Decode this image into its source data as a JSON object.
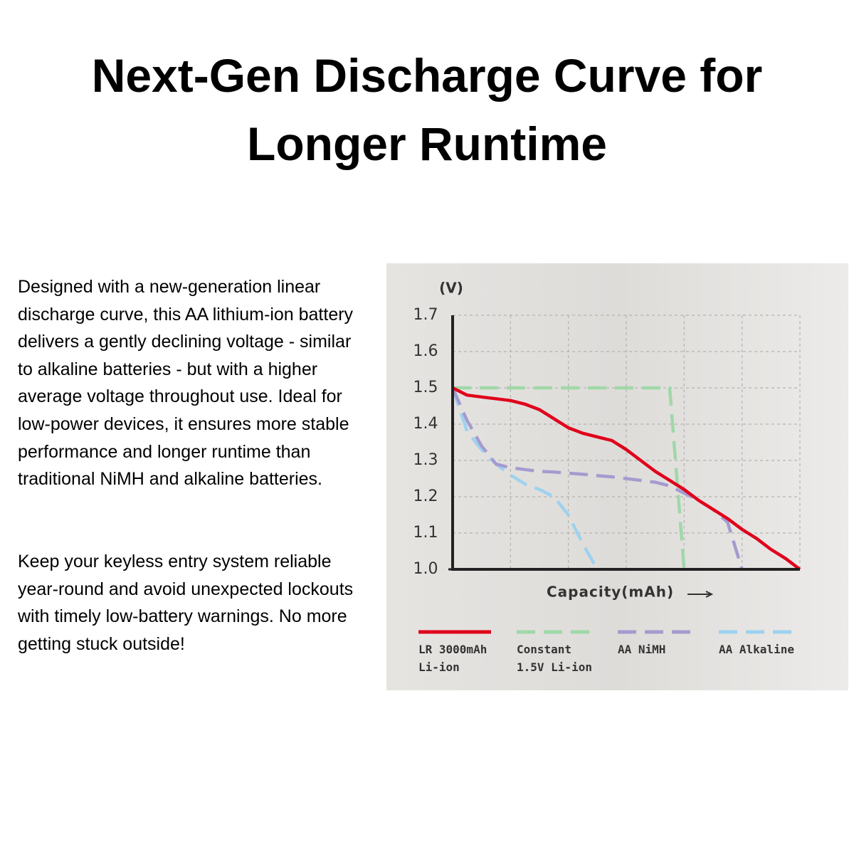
{
  "heading": "Next-Gen Discharge Curve for Longer Runtime",
  "paragraphs": [
    "Designed with a new-generation linear discharge curve, this AA lithium-ion battery delivers a gently declining voltage - similar to alkaline batteries - but with a higher average voltage throughout use. Ideal for low-power devices, it ensures more stable performance and longer runtime than traditional NiMH and alkaline batteries.",
    "Keep your keyless entry system reliable year-round and avoid unexpected lockouts with timely low-battery warnings. No more getting stuck outside!"
  ],
  "chart_data": {
    "type": "line",
    "ylabel": "(V)",
    "xlabel": "Capacity(mAh)",
    "categories": [
      null,
      null,
      null,
      null,
      null,
      null,
      null,
      null,
      null,
      null,
      null,
      null,
      null,
      null,
      null,
      null,
      null,
      null,
      null,
      null,
      null,
      null,
      null,
      null,
      null
    ],
    "ylim": [
      1,
      1.7
    ],
    "yticks": [
      {
        "value": 1,
        "label": "1.0"
      },
      1.1,
      1.2,
      1.3,
      1.4,
      1.5,
      1.6,
      1.7
    ],
    "grid": true,
    "series": [
      {
        "name": "LR 3000mAh\nLi-ion",
        "color": "#e0001b",
        "dashed": false,
        "values": [
          1.5,
          1.48,
          1.475,
          1.47,
          1.465,
          1.455,
          1.44,
          1.415,
          1.39,
          1.375,
          1.365,
          1.355,
          1.33,
          1.3,
          1.27,
          1.245,
          1.22,
          1.19,
          1.165,
          1.14,
          1.11,
          1.085,
          1.055,
          1.03,
          1.0
        ]
      },
      {
        "name": "Constant\n1.5V Li-ion",
        "color": "#9fd8a8",
        "dashed": true,
        "values": [
          1.5,
          1.5,
          1.5,
          1.5,
          1.5,
          1.5,
          1.5,
          1.5,
          1.5,
          1.5,
          1.5,
          1.5,
          1.5,
          1.5,
          1.5,
          1.5,
          1.0,
          null,
          null,
          null,
          null,
          null,
          null,
          null,
          null
        ]
      },
      {
        "name": "AA NiMH",
        "color": "#a59bcf",
        "dashed": true,
        "values": [
          1.5,
          1.41,
          1.34,
          1.29,
          1.28,
          1.275,
          1.27,
          1.268,
          1.265,
          1.262,
          1.258,
          1.255,
          1.25,
          1.245,
          1.24,
          1.23,
          1.21,
          1.19,
          1.165,
          1.13,
          1.0,
          null,
          null,
          null,
          null
        ]
      },
      {
        "name": "AA Alkaline",
        "color": "#9dd2f0",
        "dashed": true,
        "values": [
          1.5,
          1.38,
          1.33,
          1.29,
          1.26,
          1.235,
          1.22,
          1.2,
          1.15,
          1.07,
          1.0,
          null,
          null,
          null,
          null,
          null,
          null,
          null,
          null,
          null,
          null,
          null,
          null,
          null,
          null
        ]
      }
    ]
  }
}
